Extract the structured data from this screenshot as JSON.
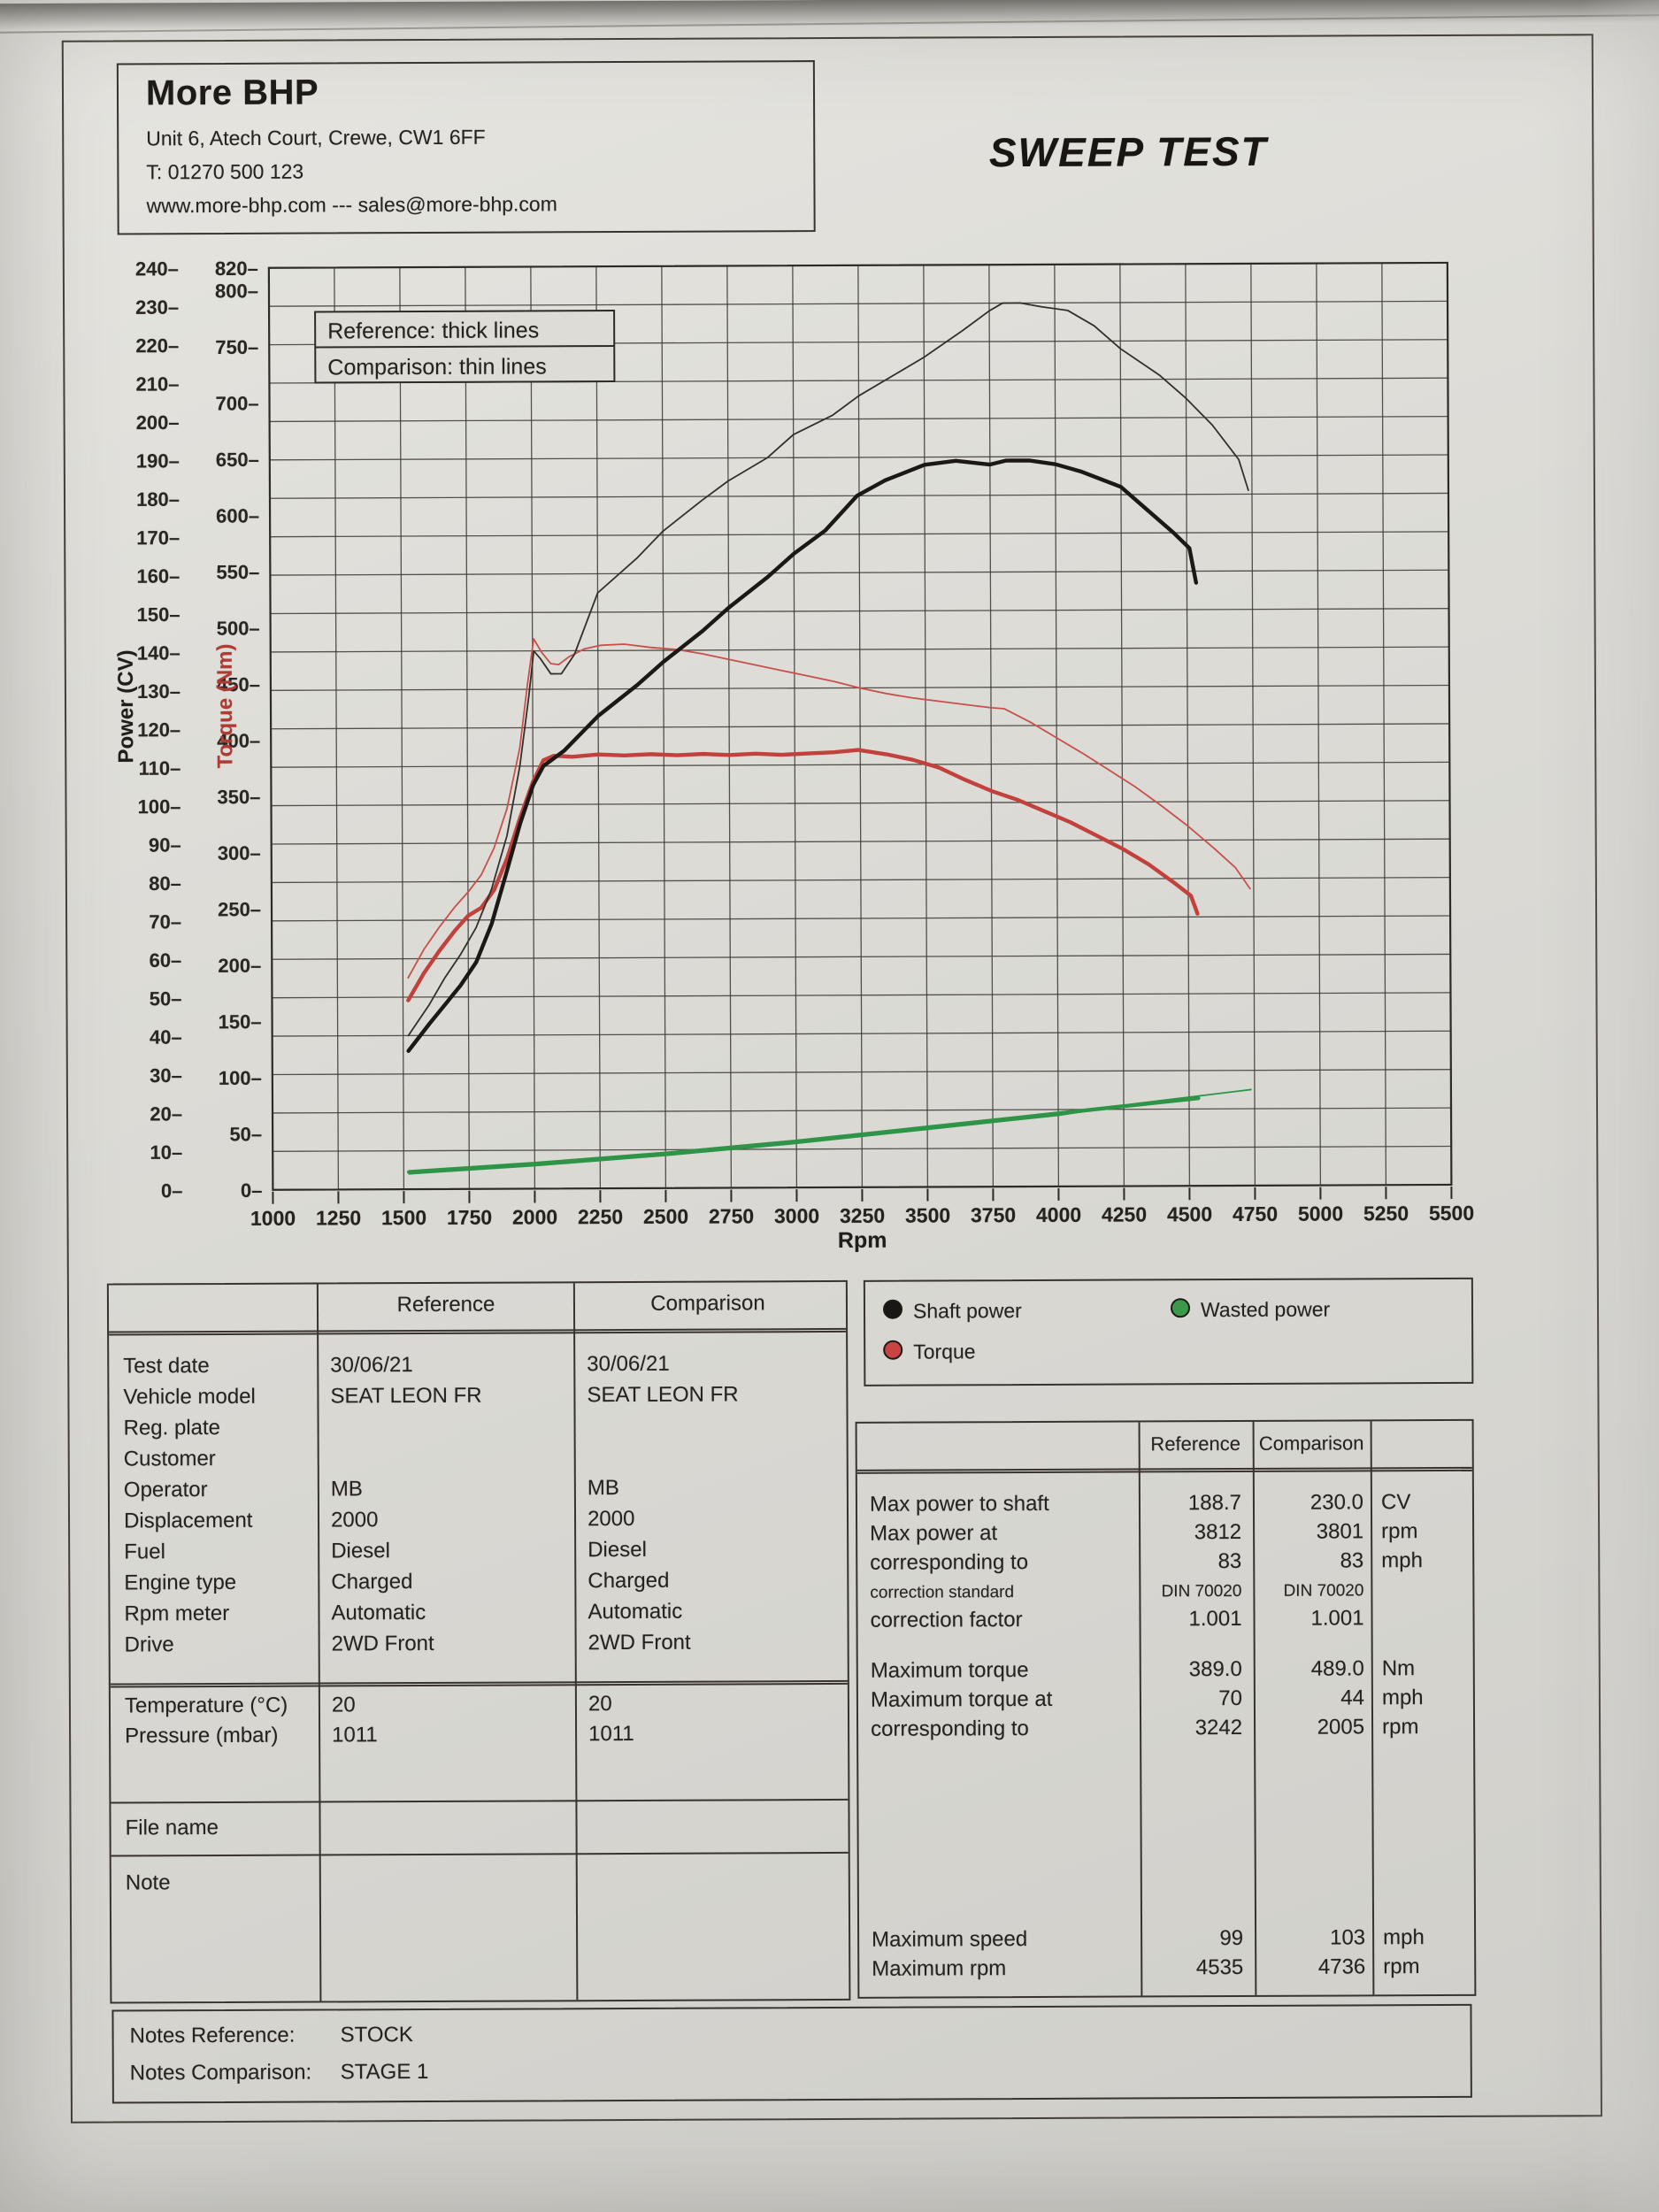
{
  "header": {
    "company": "More BHP",
    "address": "Unit 6, Atech Court, Crewe, CW1 6FF",
    "phone": "T: 01270 500 123",
    "web": "www.more-bhp.com --- sales@more-bhp.com",
    "title": "SWEEP TEST"
  },
  "chart_data": {
    "type": "line",
    "title": "",
    "xlabel": "Rpm",
    "x_range": [
      1000,
      5500
    ],
    "x_tick_step": 250,
    "grid": "on",
    "left_axis": {
      "label": "Power (CV)",
      "min": 0,
      "max": 240,
      "tick_step": 10
    },
    "torque_axis": {
      "label": "Torque (Nm)",
      "min": 0,
      "max": 820,
      "ticks": [
        0,
        50,
        100,
        150,
        200,
        250,
        300,
        350,
        400,
        450,
        500,
        550,
        600,
        650,
        700,
        750,
        800,
        820
      ]
    },
    "reference_note": "Reference: thick lines",
    "comparison_note": "Comparison: thin lines",
    "series": [
      {
        "name": "Reference wasted power",
        "axis": "power",
        "style": "thick",
        "color": "#2e9447",
        "points": [
          [
            1520,
            4.5
          ],
          [
            2000,
            6.5
          ],
          [
            2500,
            9
          ],
          [
            3000,
            12
          ],
          [
            3500,
            15.5
          ],
          [
            4000,
            19
          ],
          [
            4250,
            20.8
          ],
          [
            4535,
            22.8
          ]
        ]
      },
      {
        "name": "Comparison wasted power",
        "axis": "power",
        "style": "thin",
        "color": "#2e9447",
        "points": [
          [
            1520,
            4
          ],
          [
            2000,
            6
          ],
          [
            2500,
            8.5
          ],
          [
            3000,
            11.5
          ],
          [
            3500,
            15
          ],
          [
            4000,
            18.5
          ],
          [
            4300,
            21.5
          ],
          [
            4736,
            25
          ]
        ]
      },
      {
        "name": "Comparison torque",
        "axis": "torque",
        "style": "thin",
        "color": "#c8504b",
        "points": [
          [
            1520,
            188
          ],
          [
            1580,
            213
          ],
          [
            1640,
            233
          ],
          [
            1700,
            251
          ],
          [
            1750,
            264
          ],
          [
            1800,
            279
          ],
          [
            1850,
            303
          ],
          [
            1900,
            338
          ],
          [
            1950,
            392
          ],
          [
            1980,
            448
          ],
          [
            2005,
            489
          ],
          [
            2035,
            477
          ],
          [
            2070,
            467
          ],
          [
            2100,
            466
          ],
          [
            2140,
            473
          ],
          [
            2200,
            480
          ],
          [
            2260,
            483
          ],
          [
            2350,
            484
          ],
          [
            2450,
            481
          ],
          [
            2550,
            479
          ],
          [
            2650,
            475
          ],
          [
            2750,
            470
          ],
          [
            2850,
            465
          ],
          [
            2950,
            460
          ],
          [
            3050,
            455
          ],
          [
            3150,
            450
          ],
          [
            3250,
            444
          ],
          [
            3350,
            439
          ],
          [
            3450,
            435
          ],
          [
            3550,
            432
          ],
          [
            3650,
            429
          ],
          [
            3750,
            426
          ],
          [
            3801,
            425
          ],
          [
            3900,
            413
          ],
          [
            4000,
            399
          ],
          [
            4100,
            385
          ],
          [
            4200,
            370
          ],
          [
            4300,
            355
          ],
          [
            4400,
            338
          ],
          [
            4500,
            320
          ],
          [
            4600,
            300
          ],
          [
            4680,
            283
          ],
          [
            4736,
            264
          ]
        ]
      },
      {
        "name": "Reference torque",
        "axis": "torque",
        "style": "thick",
        "color": "#c2413d",
        "points": [
          [
            1520,
            168
          ],
          [
            1580,
            192
          ],
          [
            1640,
            212
          ],
          [
            1700,
            230
          ],
          [
            1750,
            243
          ],
          [
            1800,
            250
          ],
          [
            1850,
            266
          ],
          [
            1900,
            294
          ],
          [
            1950,
            330
          ],
          [
            2000,
            362
          ],
          [
            2040,
            381
          ],
          [
            2080,
            385
          ],
          [
            2150,
            384
          ],
          [
            2250,
            386
          ],
          [
            2350,
            385
          ],
          [
            2450,
            386
          ],
          [
            2550,
            385
          ],
          [
            2650,
            386
          ],
          [
            2750,
            385
          ],
          [
            2850,
            386
          ],
          [
            2950,
            385
          ],
          [
            3050,
            386
          ],
          [
            3150,
            387
          ],
          [
            3242,
            389
          ],
          [
            3350,
            385
          ],
          [
            3450,
            380
          ],
          [
            3550,
            373
          ],
          [
            3650,
            362
          ],
          [
            3750,
            352
          ],
          [
            3850,
            344
          ],
          [
            3950,
            334
          ],
          [
            4050,
            324
          ],
          [
            4150,
            312
          ],
          [
            4250,
            300
          ],
          [
            4350,
            286
          ],
          [
            4450,
            269
          ],
          [
            4510,
            258
          ],
          [
            4535,
            242
          ]
        ]
      },
      {
        "name": "Comparison shaft power",
        "axis": "power",
        "style": "thin",
        "color": "#33302c",
        "points": [
          [
            1520,
            40
          ],
          [
            1600,
            48
          ],
          [
            1660,
            55
          ],
          [
            1720,
            61
          ],
          [
            1780,
            68
          ],
          [
            1840,
            78
          ],
          [
            1900,
            92
          ],
          [
            1950,
            110
          ],
          [
            1985,
            128
          ],
          [
            2005,
            140
          ],
          [
            2030,
            138
          ],
          [
            2070,
            134
          ],
          [
            2110,
            134
          ],
          [
            2160,
            139
          ],
          [
            2250,
            155
          ],
          [
            2400,
            164
          ],
          [
            2500,
            171
          ],
          [
            2650,
            179
          ],
          [
            2750,
            184
          ],
          [
            2900,
            190
          ],
          [
            3000,
            196
          ],
          [
            3150,
            201
          ],
          [
            3250,
            206
          ],
          [
            3400,
            212
          ],
          [
            3500,
            216
          ],
          [
            3650,
            223
          ],
          [
            3750,
            228
          ],
          [
            3801,
            230
          ],
          [
            3870,
            230
          ],
          [
            3950,
            229
          ],
          [
            4050,
            228
          ],
          [
            4150,
            224
          ],
          [
            4250,
            218
          ],
          [
            4400,
            211
          ],
          [
            4500,
            205
          ],
          [
            4600,
            198
          ],
          [
            4700,
            189
          ],
          [
            4736,
            181
          ]
        ]
      },
      {
        "name": "Reference shaft power",
        "axis": "power",
        "style": "thick",
        "color": "#1b1815",
        "points": [
          [
            1520,
            36
          ],
          [
            1600,
            43
          ],
          [
            1660,
            48
          ],
          [
            1720,
            53
          ],
          [
            1780,
            59
          ],
          [
            1840,
            69
          ],
          [
            1900,
            83
          ],
          [
            1950,
            95
          ],
          [
            2000,
            105
          ],
          [
            2040,
            110
          ],
          [
            2120,
            114
          ],
          [
            2250,
            123
          ],
          [
            2400,
            131
          ],
          [
            2500,
            137
          ],
          [
            2650,
            145
          ],
          [
            2750,
            151
          ],
          [
            2900,
            159
          ],
          [
            3000,
            165
          ],
          [
            3120,
            171
          ],
          [
            3242,
            180
          ],
          [
            3350,
            184
          ],
          [
            3500,
            188
          ],
          [
            3620,
            189
          ],
          [
            3750,
            188
          ],
          [
            3812,
            189
          ],
          [
            3900,
            189
          ],
          [
            4000,
            188
          ],
          [
            4100,
            186
          ],
          [
            4250,
            182
          ],
          [
            4350,
            176
          ],
          [
            4450,
            170
          ],
          [
            4510,
            166
          ],
          [
            4535,
            157
          ]
        ]
      }
    ]
  },
  "curve_legend": {
    "shaft_power": "Shaft power",
    "wasted_power": "Wasted power",
    "torque": "Torque",
    "colors": {
      "shaft": "#191715",
      "wasted": "#3a9a4a",
      "torque": "#c74440"
    }
  },
  "info_table": {
    "col_headers": [
      "Reference",
      "Comparison"
    ],
    "sections": [
      {
        "rows": [
          [
            "Test date",
            "30/06/21",
            "30/06/21"
          ],
          [
            "Vehicle model",
            "SEAT LEON FR",
            "SEAT LEON FR"
          ],
          [
            "Reg. plate",
            "",
            ""
          ],
          [
            "Customer",
            "",
            ""
          ],
          [
            "Operator",
            "MB",
            "MB"
          ],
          [
            "Displacement",
            "2000",
            "2000"
          ],
          [
            "Fuel",
            "Diesel",
            "Diesel"
          ],
          [
            "Engine type",
            "Charged",
            "Charged"
          ],
          [
            "Rpm meter",
            "Automatic",
            "Automatic"
          ],
          [
            "Drive",
            "2WD Front",
            "2WD Front"
          ]
        ]
      },
      {
        "rows": [
          [
            "Temperature (°C)",
            "20",
            "20"
          ],
          [
            "Pressure (mbar)",
            "1011",
            "1011"
          ]
        ]
      },
      {
        "rows": [
          [
            "File name",
            "",
            ""
          ]
        ]
      },
      {
        "rows": [
          [
            "Note",
            "",
            ""
          ]
        ]
      }
    ]
  },
  "results_table": {
    "col_headers": [
      "Reference",
      "Comparison"
    ],
    "rows": [
      {
        "label": "Max power to shaft",
        "ref": "188.7",
        "comp": "230.0",
        "unit": "CV"
      },
      {
        "label": "Max power at",
        "ref": "3812",
        "comp": "3801",
        "unit": "rpm"
      },
      {
        "label": "corresponding to",
        "ref": "83",
        "comp": "83",
        "unit": "mph"
      },
      {
        "label": "correction standard",
        "ref": "DIN 70020",
        "comp": "DIN 70020",
        "unit": ""
      },
      {
        "label": "correction factor",
        "ref": "1.001",
        "comp": "1.001",
        "unit": ""
      },
      {
        "label": "Maximum torque",
        "ref": "389.0",
        "comp": "489.0",
        "unit": "Nm"
      },
      {
        "label": "Maximum torque at",
        "ref": "70",
        "comp": "44",
        "unit": "mph"
      },
      {
        "label": "corresponding to",
        "ref": "3242",
        "comp": "2005",
        "unit": "rpm"
      },
      {
        "label": "Maximum speed",
        "ref": "99",
        "comp": "103",
        "unit": "mph"
      },
      {
        "label": "Maximum rpm",
        "ref": "4535",
        "comp": "4736",
        "unit": "rpm"
      }
    ]
  },
  "notes": {
    "reference_label": "Notes Reference:",
    "reference_value": "STOCK",
    "comparison_label": "Notes Comparison:",
    "comparison_value": "STAGE 1"
  }
}
